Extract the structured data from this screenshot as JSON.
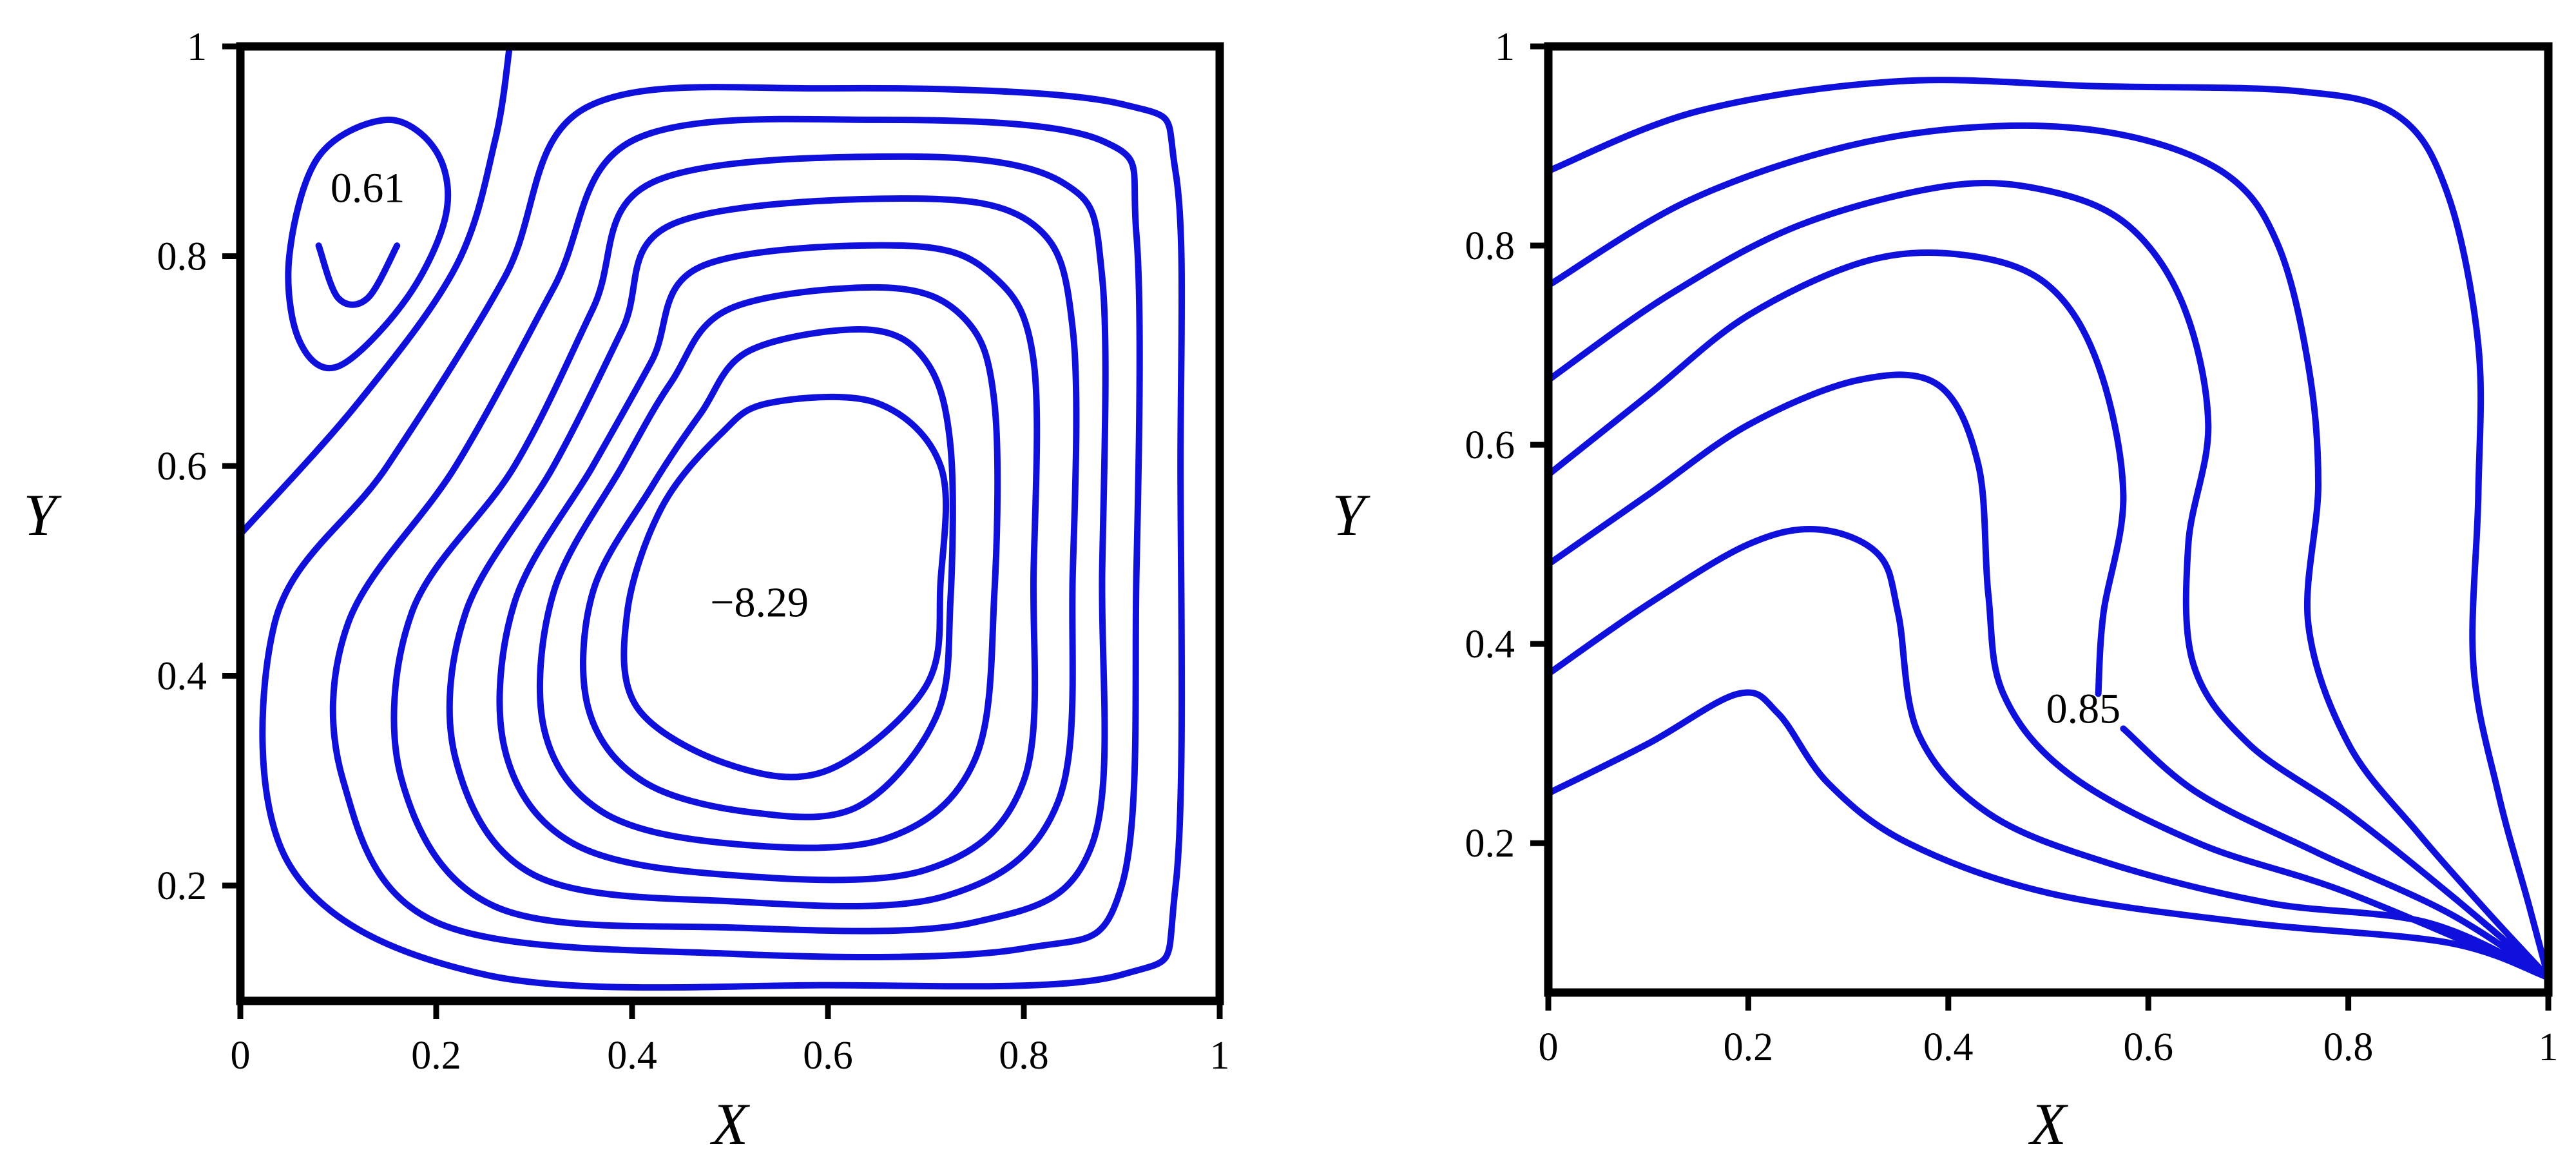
{
  "chart_data": [
    {
      "type": "contour",
      "panel": "left",
      "xlabel": "X",
      "ylabel": "Y",
      "xlim": [
        0,
        1
      ],
      "ylim": [
        0.09,
        1
      ],
      "xticks": [
        0,
        0.2,
        0.4,
        0.6,
        0.8,
        1
      ],
      "xtick_labels": [
        "0",
        "0.2",
        "0.4",
        "0.6",
        "0.8",
        "1"
      ],
      "yticks": [
        0.2,
        0.4,
        0.6,
        0.8,
        1
      ],
      "ytick_labels": [
        "0.2",
        "0.4",
        "0.6",
        "0.8",
        "1"
      ],
      "line_color": "#1010dd",
      "annotations": [
        {
          "text": "0.61",
          "x": 0.13,
          "y": 0.865
        },
        {
          "text": "−8.29",
          "x": 0.53,
          "y": 0.47
        }
      ],
      "contours": [
        {
          "closed": false,
          "points": [
            [
              0.0,
              0.535
            ],
            [
              0.12,
              0.66
            ],
            [
              0.22,
              0.79
            ],
            [
              0.26,
              0.91
            ],
            [
              0.275,
              1.0
            ]
          ]
        },
        {
          "closed": true,
          "points": [
            [
              0.08,
              0.895
            ],
            [
              0.15,
              0.93
            ],
            [
              0.2,
              0.9
            ],
            [
              0.21,
              0.84
            ],
            [
              0.17,
              0.76
            ],
            [
              0.1,
              0.695
            ],
            [
              0.06,
              0.72
            ],
            [
              0.05,
              0.8
            ]
          ]
        },
        {
          "closed": false,
          "points": [
            [
              0.08,
              0.81
            ],
            [
              0.1,
              0.76
            ],
            [
              0.13,
              0.76
            ],
            [
              0.16,
              0.81
            ]
          ]
        },
        {
          "closed": true,
          "points": [
            [
              0.35,
              0.94
            ],
            [
              0.6,
              0.96
            ],
            [
              0.9,
              0.945
            ],
            [
              0.955,
              0.88
            ],
            [
              0.96,
              0.6
            ],
            [
              0.955,
              0.2
            ],
            [
              0.9,
              0.115
            ],
            [
              0.6,
              0.105
            ],
            [
              0.25,
              0.115
            ],
            [
              0.05,
              0.22
            ],
            [
              0.035,
              0.45
            ],
            [
              0.15,
              0.6
            ],
            [
              0.27,
              0.78
            ]
          ]
        },
        {
          "closed": true,
          "points": [
            [
              0.4,
              0.91
            ],
            [
              0.65,
              0.93
            ],
            [
              0.88,
              0.91
            ],
            [
              0.915,
              0.82
            ],
            [
              0.915,
              0.5
            ],
            [
              0.9,
              0.2
            ],
            [
              0.8,
              0.14
            ],
            [
              0.5,
              0.135
            ],
            [
              0.2,
              0.165
            ],
            [
              0.105,
              0.3
            ],
            [
              0.11,
              0.45
            ],
            [
              0.22,
              0.6
            ],
            [
              0.32,
              0.77
            ]
          ]
        },
        {
          "closed": true,
          "points": [
            [
              0.42,
              0.87
            ],
            [
              0.68,
              0.895
            ],
            [
              0.84,
              0.87
            ],
            [
              0.88,
              0.78
            ],
            [
              0.88,
              0.5
            ],
            [
              0.87,
              0.24
            ],
            [
              0.75,
              0.165
            ],
            [
              0.5,
              0.16
            ],
            [
              0.26,
              0.18
            ],
            [
              0.165,
              0.3
            ],
            [
              0.175,
              0.46
            ],
            [
              0.28,
              0.6
            ],
            [
              0.36,
              0.75
            ]
          ]
        },
        {
          "closed": true,
          "points": [
            [
              0.44,
              0.83
            ],
            [
              0.68,
              0.855
            ],
            [
              0.81,
              0.83
            ],
            [
              0.85,
              0.73
            ],
            [
              0.85,
              0.5
            ],
            [
              0.835,
              0.28
            ],
            [
              0.72,
              0.19
            ],
            [
              0.5,
              0.185
            ],
            [
              0.3,
              0.21
            ],
            [
              0.22,
              0.32
            ],
            [
              0.23,
              0.46
            ],
            [
              0.32,
              0.6
            ],
            [
              0.39,
              0.73
            ]
          ]
        },
        {
          "closed": true,
          "points": [
            [
              0.47,
              0.79
            ],
            [
              0.68,
              0.81
            ],
            [
              0.77,
              0.78
            ],
            [
              0.81,
              0.7
            ],
            [
              0.81,
              0.5
            ],
            [
              0.8,
              0.3
            ],
            [
              0.7,
              0.215
            ],
            [
              0.5,
              0.21
            ],
            [
              0.34,
              0.24
            ],
            [
              0.27,
              0.33
            ],
            [
              0.28,
              0.47
            ],
            [
              0.36,
              0.6
            ],
            [
              0.42,
              0.7
            ]
          ]
        },
        {
          "closed": true,
          "points": [
            [
              0.5,
              0.75
            ],
            [
              0.66,
              0.77
            ],
            [
              0.74,
              0.74
            ],
            [
              0.77,
              0.66
            ],
            [
              0.77,
              0.48
            ],
            [
              0.75,
              0.32
            ],
            [
              0.66,
              0.245
            ],
            [
              0.5,
              0.24
            ],
            [
              0.37,
              0.27
            ],
            [
              0.31,
              0.35
            ],
            [
              0.32,
              0.48
            ],
            [
              0.39,
              0.6
            ],
            [
              0.44,
              0.68
            ]
          ]
        },
        {
          "closed": true,
          "points": [
            [
              0.52,
              0.71
            ],
            [
              0.64,
              0.73
            ],
            [
              0.7,
              0.7
            ],
            [
              0.725,
              0.62
            ],
            [
              0.725,
              0.47
            ],
            [
              0.71,
              0.36
            ],
            [
              0.63,
              0.275
            ],
            [
              0.52,
              0.27
            ],
            [
              0.41,
              0.3
            ],
            [
              0.355,
              0.37
            ],
            [
              0.36,
              0.48
            ],
            [
              0.42,
              0.58
            ],
            [
              0.47,
              0.65
            ]
          ]
        },
        {
          "closed": true,
          "points": [
            [
              0.54,
              0.66
            ],
            [
              0.65,
              0.66
            ],
            [
              0.715,
              0.6
            ],
            [
              0.715,
              0.49
            ],
            [
              0.7,
              0.39
            ],
            [
              0.6,
              0.31
            ],
            [
              0.5,
              0.315
            ],
            [
              0.405,
              0.37
            ],
            [
              0.395,
              0.46
            ],
            [
              0.43,
              0.56
            ],
            [
              0.49,
              0.63
            ]
          ]
        }
      ]
    },
    {
      "type": "contour",
      "panel": "right",
      "xlabel": "X",
      "ylabel": "Y",
      "xlim": [
        0,
        1
      ],
      "ylim": [
        0.05,
        1
      ],
      "xticks": [
        0,
        0.2,
        0.4,
        0.6,
        0.8,
        1
      ],
      "xtick_labels": [
        "0",
        "0.2",
        "0.4",
        "0.6",
        "0.8",
        "1"
      ],
      "yticks": [
        0.2,
        0.4,
        0.6,
        0.8,
        1
      ],
      "ytick_labels": [
        "0.2",
        "0.4",
        "0.6",
        "0.8",
        "1"
      ],
      "line_color": "#1010dd",
      "annotations": [
        {
          "text": "0.85",
          "x": 0.535,
          "y": 0.335
        }
      ],
      "contours": [
        {
          "closed": false,
          "points": [
            [
              0.0,
              0.25
            ],
            [
              0.1,
              0.3
            ],
            [
              0.19,
              0.35
            ],
            [
              0.23,
              0.33
            ],
            [
              0.28,
              0.26
            ],
            [
              0.36,
              0.2
            ],
            [
              0.5,
              0.15
            ],
            [
              0.7,
              0.12
            ],
            [
              0.9,
              0.1
            ],
            [
              1.0,
              0.065
            ]
          ]
        },
        {
          "closed": false,
          "points": [
            [
              0.0,
              0.37
            ],
            [
              0.1,
              0.44
            ],
            [
              0.2,
              0.5
            ],
            [
              0.27,
              0.515
            ],
            [
              0.33,
              0.49
            ],
            [
              0.35,
              0.43
            ],
            [
              0.37,
              0.31
            ],
            [
              0.44,
              0.23
            ],
            [
              0.56,
              0.18
            ],
            [
              0.72,
              0.14
            ],
            [
              0.88,
              0.12
            ],
            [
              1.0,
              0.065
            ]
          ]
        },
        {
          "closed": false,
          "points": [
            [
              0.0,
              0.48
            ],
            [
              0.1,
              0.55
            ],
            [
              0.2,
              0.62
            ],
            [
              0.31,
              0.665
            ],
            [
              0.39,
              0.66
            ],
            [
              0.43,
              0.58
            ],
            [
              0.44,
              0.45
            ],
            [
              0.455,
              0.35
            ],
            [
              0.52,
              0.27
            ],
            [
              0.65,
              0.2
            ],
            [
              0.8,
              0.15
            ],
            [
              1.0,
              0.065
            ]
          ]
        },
        {
          "closed": false,
          "points": [
            [
              0.0,
              0.57
            ],
            [
              0.1,
              0.65
            ],
            [
              0.2,
              0.73
            ],
            [
              0.32,
              0.785
            ],
            [
              0.42,
              0.79
            ],
            [
              0.5,
              0.76
            ],
            [
              0.55,
              0.68
            ],
            [
              0.575,
              0.55
            ],
            [
              0.555,
              0.43
            ],
            [
              0.55,
              0.35
            ]
          ]
        },
        {
          "closed": false,
          "points": [
            [
              0.575,
              0.315
            ],
            [
              0.65,
              0.25
            ],
            [
              0.77,
              0.19
            ],
            [
              0.9,
              0.13
            ],
            [
              1.0,
              0.065
            ]
          ]
        },
        {
          "closed": false,
          "points": [
            [
              0.0,
              0.665
            ],
            [
              0.12,
              0.75
            ],
            [
              0.25,
              0.82
            ],
            [
              0.4,
              0.86
            ],
            [
              0.5,
              0.855
            ],
            [
              0.58,
              0.82
            ],
            [
              0.635,
              0.74
            ],
            [
              0.66,
              0.62
            ],
            [
              0.64,
              0.5
            ],
            [
              0.645,
              0.38
            ],
            [
              0.7,
              0.3
            ],
            [
              0.8,
              0.23
            ],
            [
              0.9,
              0.15
            ],
            [
              1.0,
              0.065
            ]
          ]
        },
        {
          "closed": false,
          "points": [
            [
              0.0,
              0.76
            ],
            [
              0.14,
              0.845
            ],
            [
              0.3,
              0.9
            ],
            [
              0.45,
              0.92
            ],
            [
              0.58,
              0.91
            ],
            [
              0.68,
              0.87
            ],
            [
              0.73,
              0.8
            ],
            [
              0.76,
              0.68
            ],
            [
              0.77,
              0.56
            ],
            [
              0.76,
              0.42
            ],
            [
              0.8,
              0.3
            ],
            [
              0.87,
              0.21
            ],
            [
              0.94,
              0.13
            ],
            [
              1.0,
              0.065
            ]
          ]
        },
        {
          "closed": false,
          "points": [
            [
              0.0,
              0.875
            ],
            [
              0.15,
              0.935
            ],
            [
              0.35,
              0.965
            ],
            [
              0.55,
              0.96
            ],
            [
              0.75,
              0.955
            ],
            [
              0.85,
              0.93
            ],
            [
              0.9,
              0.85
            ],
            [
              0.93,
              0.7
            ],
            [
              0.93,
              0.55
            ],
            [
              0.925,
              0.38
            ],
            [
              0.95,
              0.25
            ],
            [
              0.98,
              0.14
            ],
            [
              1.0,
              0.065
            ]
          ]
        }
      ]
    }
  ]
}
